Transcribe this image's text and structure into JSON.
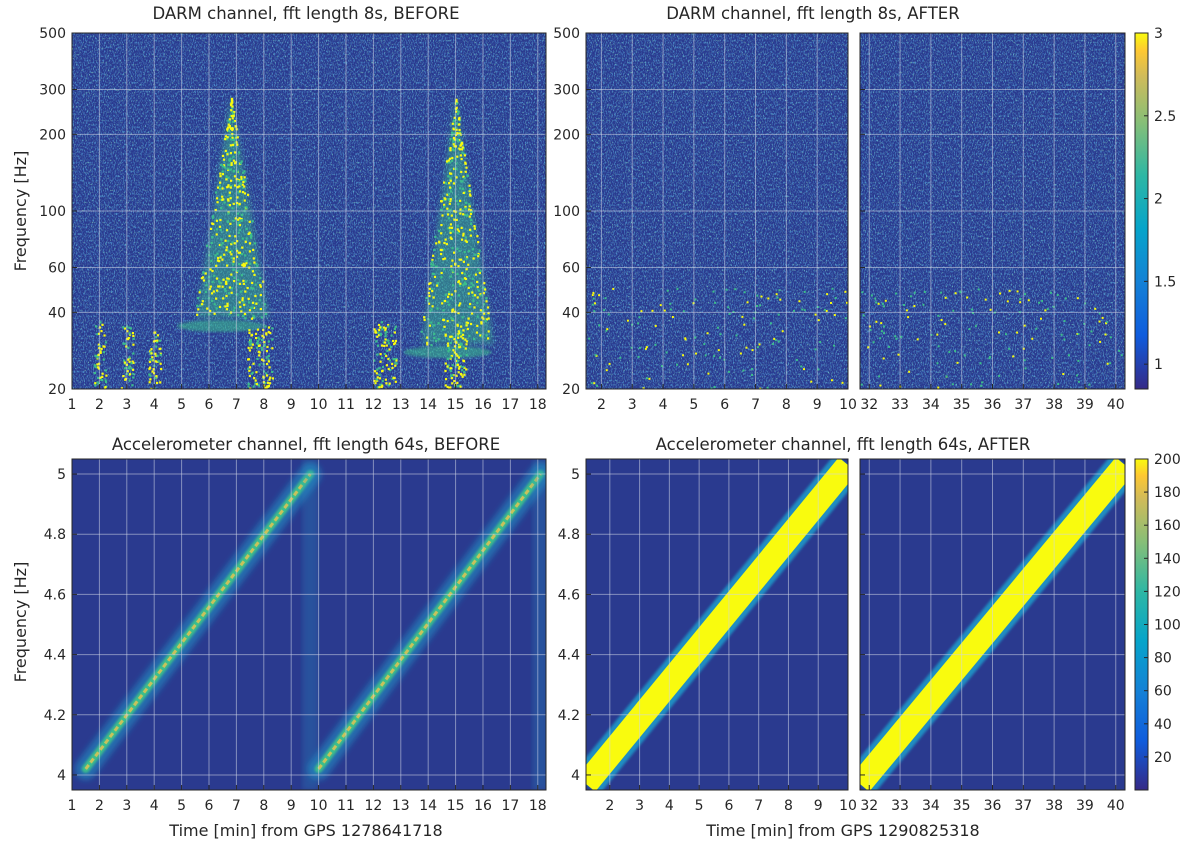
{
  "chart_data": [
    {
      "type": "heatmap",
      "panel": "darm-before",
      "title": "DARM channel, fft length 8s, BEFORE",
      "xlabel": "",
      "ylabel": "Frequency [Hz]",
      "xlim": [
        1,
        18.3
      ],
      "ylim": [
        20,
        500
      ],
      "yscale": "log",
      "xticks": [
        1,
        2,
        3,
        4,
        5,
        6,
        7,
        8,
        9,
        10,
        11,
        12,
        13,
        14,
        15,
        16,
        17,
        18
      ],
      "yticks": [
        20,
        40,
        60,
        100,
        200,
        300,
        500
      ],
      "grid": true,
      "features": [
        {
          "kind": "fan",
          "center_x": 6.8,
          "tip_freq": 280,
          "base_freq": 38
        },
        {
          "kind": "fan",
          "center_x": 15.0,
          "tip_freq": 280,
          "base_freq": 30
        }
      ],
      "low_freq_bursts_x": [
        2.0,
        3.0,
        4.0,
        7.6,
        8.1,
        12.2,
        12.6,
        14.8,
        15.2
      ]
    },
    {
      "type": "heatmap",
      "panel": "darm-after",
      "title": "DARM channel, fft length 8s, AFTER",
      "xlabel": "",
      "ylabel": "",
      "segments": [
        {
          "xlim": [
            1.5,
            10
          ],
          "xticks": [
            2,
            3,
            4,
            5,
            6,
            7,
            8,
            9,
            10
          ]
        },
        {
          "xlim": [
            31.7,
            40.3
          ],
          "xticks": [
            32,
            33,
            34,
            35,
            36,
            37,
            38,
            39,
            40
          ]
        }
      ],
      "ylim": [
        20,
        500
      ],
      "yscale": "log",
      "yticks": [
        20,
        40,
        60,
        100,
        200,
        300,
        500
      ],
      "grid": true,
      "colorbar": {
        "min": 0.85,
        "max": 3,
        "ticks": [
          1,
          1.5,
          2,
          2.5,
          3
        ]
      }
    },
    {
      "type": "heatmap",
      "panel": "accel-before",
      "title": "Accelerometer channel, fft length 64s, BEFORE",
      "xlabel": "Time [min] from GPS 1278641718",
      "ylabel": "Frequency [Hz]",
      "xlim": [
        1,
        18.3
      ],
      "ylim": [
        3.95,
        5.05
      ],
      "xticks": [
        1,
        2,
        3,
        4,
        5,
        6,
        7,
        8,
        9,
        10,
        11,
        12,
        13,
        14,
        15,
        16,
        17,
        18
      ],
      "yticks": [
        4,
        4.2,
        4.4,
        4.6,
        4.8,
        5
      ],
      "grid": true,
      "sweeps": [
        {
          "x_start": 1.5,
          "f_start": 4.02,
          "x_end": 9.7,
          "f_end": 5.0,
          "peak": 150
        },
        {
          "x_start": 10.0,
          "f_start": 4.02,
          "x_end": 18.1,
          "f_end": 5.0,
          "peak": 150
        }
      ]
    },
    {
      "type": "heatmap",
      "panel": "accel-after",
      "title": "Accelerometer channel, fft length 64s, AFTER",
      "xlabel": "Time [min] from GPS 1290825318",
      "ylabel": "",
      "segments": [
        {
          "xlim": [
            1.2,
            10
          ],
          "xticks": [
            2,
            3,
            4,
            5,
            6,
            7,
            8,
            9,
            10
          ]
        },
        {
          "xlim": [
            31.7,
            40.3
          ],
          "xticks": [
            32,
            33,
            34,
            35,
            36,
            37,
            38,
            39,
            40
          ]
        }
      ],
      "ylim": [
        3.95,
        5.05
      ],
      "yticks": [
        4,
        4.2,
        4.4,
        4.6,
        4.8,
        5
      ],
      "grid": true,
      "sweeps": [
        {
          "segment": 0,
          "x_start": 1.2,
          "f_start": 3.97,
          "x_end": 10.0,
          "f_end": 5.03,
          "peak": 200
        },
        {
          "segment": 1,
          "x_start": 31.7,
          "f_start": 3.97,
          "x_end": 40.3,
          "f_end": 5.03,
          "peak": 200
        }
      ],
      "colorbar": {
        "min": 0,
        "max": 200,
        "ticks": [
          20,
          40,
          60,
          80,
          100,
          120,
          140,
          160,
          180,
          200
        ]
      }
    }
  ],
  "colors": {
    "background_low": "#2a3a8f",
    "mid": "#1e96c8",
    "green": "#3cbe8c",
    "high": "#f9fb0e",
    "grid": "#cfd6e6"
  }
}
